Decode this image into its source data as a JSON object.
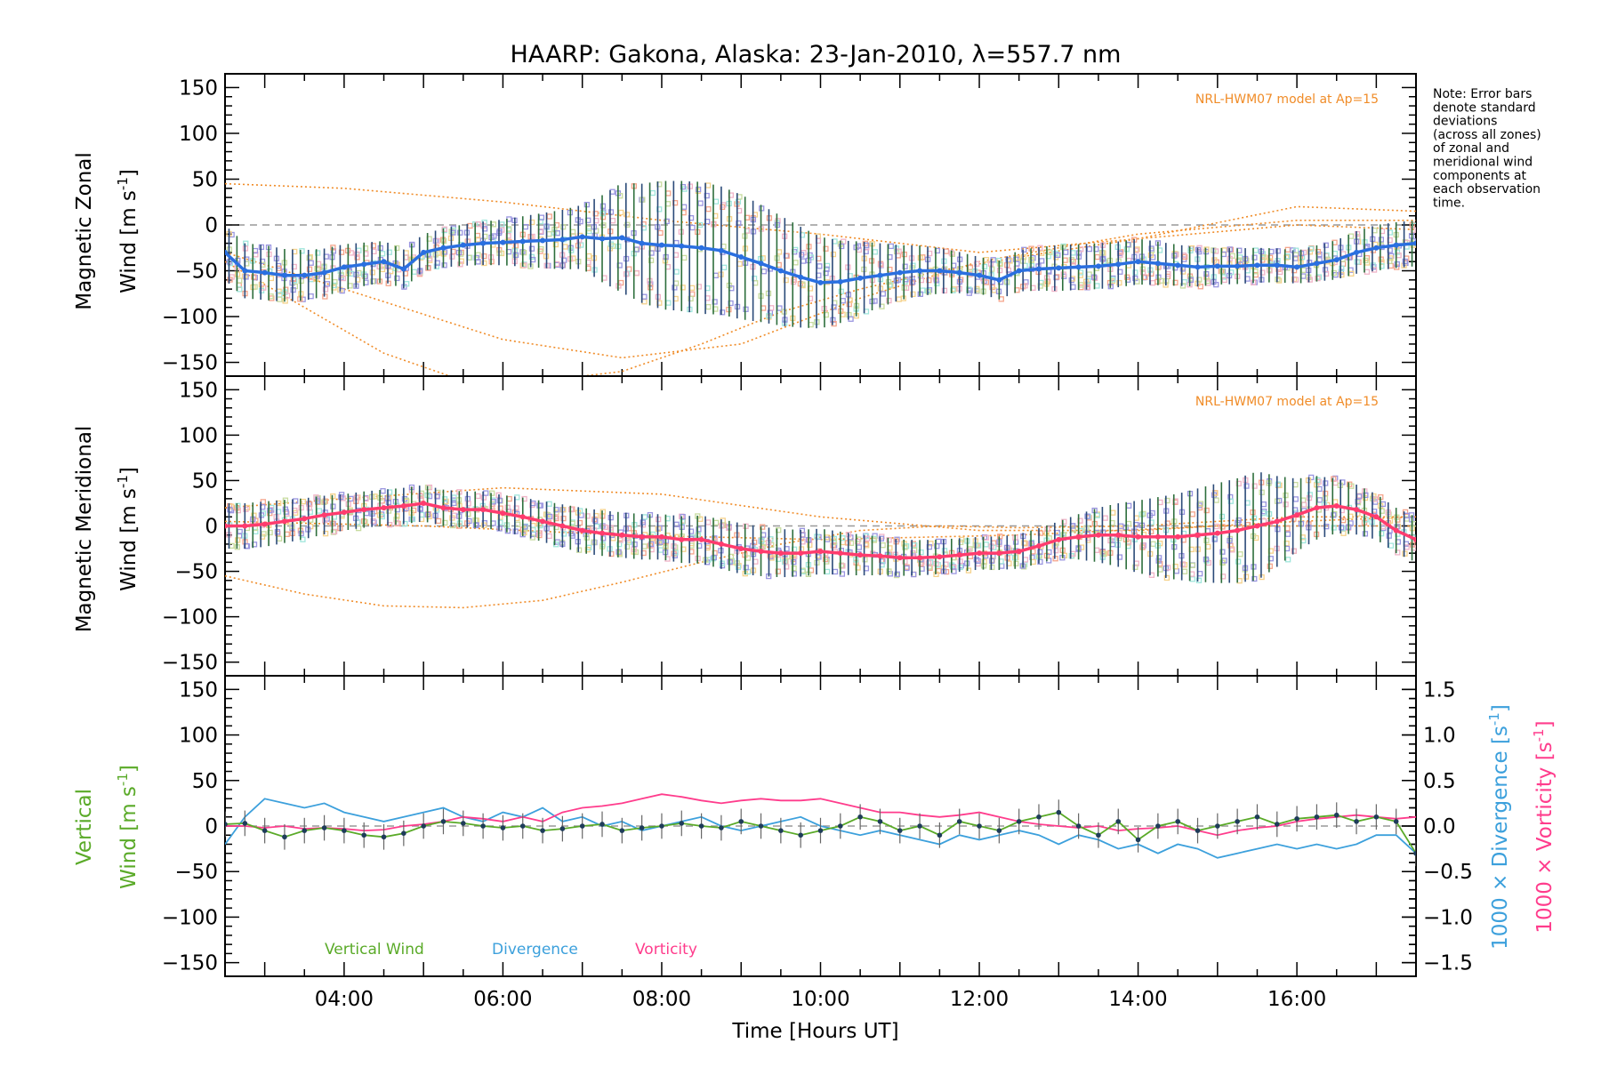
{
  "title": "HAARP: Gakona,  Alaska: 23-Jan-2010, λ=557.7 nm",
  "note_lines": [
    "Note: Error bars",
    "denote standard",
    "deviations",
    "(across all zones)",
    "of zonal and",
    "meridional wind",
    "components at",
    "each observation",
    "time."
  ],
  "colors": {
    "zonal_mean": "#2a6fe0",
    "meridional_mean": "#ff3c6e",
    "vertical": "#5aaa28",
    "divergence": "#3ca0dc",
    "vorticity": "#ff3c8c",
    "model": "#f08c28",
    "errorbar": "#1e3c5a",
    "zone_scatter": "#9a96e0",
    "zone_scatter_salmon": "#f5a58c"
  },
  "x_axis": {
    "label_pre": "Time ",
    "label_bracket": "[Hours UT]",
    "ticks": [
      "04:00",
      "06:00",
      "08:00",
      "10:00",
      "12:00",
      "14:00",
      "16:00"
    ],
    "range_hours": [
      2.5,
      17.5
    ]
  },
  "panel1": {
    "ylabel_line1": "Magnetic Zonal",
    "ylabel_line2": "Wind [m s",
    "ylabel_sup": "-1",
    "ylabel_close": "]",
    "model_label": "NRL-HWM07 model at Ap=15",
    "yticks": [
      "150",
      "100",
      "50",
      "0",
      "−50",
      "−100",
      "−150"
    ]
  },
  "panel2": {
    "ylabel_line1": "Magnetic Meridional",
    "ylabel_line2": "Wind [m s",
    "ylabel_sup": "-1",
    "ylabel_close": "]",
    "model_label": "NRL-HWM07 model at Ap=15",
    "yticks": [
      "150",
      "100",
      "50",
      "0",
      "−50",
      "−100",
      "−150"
    ]
  },
  "panel3": {
    "ylabel_line1": "Vertical",
    "ylabel_line2": "Wind [m s",
    "ylabel_sup": "-1",
    "ylabel_close": "]",
    "yticks": [
      "150",
      "100",
      "50",
      "0",
      "−50",
      "−100",
      "−150"
    ],
    "right_ticks": [
      "1.5",
      "1.0",
      "0.5",
      "0.0",
      "−0.5",
      "−1.0",
      "−1.5"
    ],
    "right_label_div": "1000 × Divergence [s",
    "right_label_vor": "1000 × Vorticity [s",
    "right_label_sup": "-1",
    "right_label_close": "]",
    "legend": [
      "Vertical Wind",
      "Divergence",
      "Vorticity"
    ]
  },
  "chart_data": [
    {
      "type": "line",
      "title": "HAARP: Gakona,  Alaska: 23-Jan-2010, λ=557.7 nm",
      "xlabel": "Time [Hours UT]",
      "ylabel": "Magnetic Zonal Wind [m s-1]",
      "ylim": [
        -165,
        165
      ],
      "xlim": [
        2.5,
        17.5
      ],
      "mean_zonal": {
        "x": [
          2.5,
          2.75,
          3.0,
          3.25,
          3.5,
          3.75,
          4.0,
          4.25,
          4.5,
          4.75,
          5.0,
          5.25,
          5.5,
          5.75,
          6.0,
          6.25,
          6.5,
          6.75,
          7.0,
          7.25,
          7.5,
          7.75,
          8.0,
          8.25,
          8.5,
          8.75,
          9.0,
          9.25,
          9.5,
          9.75,
          10.0,
          10.25,
          10.5,
          10.75,
          11.0,
          11.25,
          11.5,
          11.75,
          12.0,
          12.25,
          12.5,
          12.75,
          13.0,
          13.25,
          13.5,
          13.75,
          14.0,
          14.25,
          14.5,
          14.75,
          15.0,
          15.25,
          15.5,
          15.75,
          16.0,
          16.25,
          16.5,
          16.75,
          17.0,
          17.25,
          17.5
        ],
        "y": [
          -30,
          -50,
          -52,
          -55,
          -55,
          -52,
          -46,
          -43,
          -40,
          -48,
          -30,
          -25,
          -22,
          -20,
          -19,
          -18,
          -17,
          -16,
          -13,
          -15,
          -14,
          -20,
          -22,
          -23,
          -25,
          -28,
          -35,
          -42,
          -50,
          -57,
          -63,
          -62,
          -58,
          -55,
          -52,
          -50,
          -50,
          -52,
          -55,
          -60,
          -50,
          -48,
          -47,
          -46,
          -45,
          -43,
          -40,
          -42,
          -44,
          -46,
          -45,
          -45,
          -44,
          -44,
          -46,
          -42,
          -38,
          -30,
          -25,
          -22,
          -20
        ]
      },
      "errorbar_std": {
        "x": [
          3.0,
          4.0,
          5.0,
          6.0,
          7.0,
          7.5,
          8.0,
          8.5,
          9.0,
          9.5,
          10.0,
          11.0,
          12.0,
          13.0,
          14.0,
          15.0,
          16.0,
          17.0
        ],
        "y": [
          30,
          25,
          20,
          25,
          35,
          60,
          70,
          72,
          68,
          60,
          50,
          30,
          20,
          25,
          25,
          20,
          18,
          25
        ]
      },
      "model_curves": [
        {
          "x": [
            2.5,
            4.0,
            6.0,
            8.0,
            10.0,
            12.0,
            14.0,
            16.0,
            17.5
          ],
          "y": [
            45,
            40,
            25,
            5,
            -10,
            -30,
            -15,
            20,
            15
          ]
        },
        {
          "x": [
            2.5,
            4.0,
            6.0,
            7.5,
            9.0,
            10.5,
            12.0,
            14.0,
            16.0,
            17.5
          ],
          "y": [
            -30,
            -70,
            -125,
            -145,
            -130,
            -80,
            -40,
            -10,
            5,
            5
          ]
        },
        {
          "x": [
            2.5,
            3.5,
            4.5,
            5.5,
            6.5,
            7.5,
            8.5,
            9.5,
            10.5,
            11.5,
            12.5,
            14.0,
            16.0,
            17.5
          ],
          "y": [
            -40,
            -90,
            -140,
            -170,
            -170,
            -160,
            -130,
            -95,
            -70,
            -50,
            -35,
            -15,
            0,
            -5
          ]
        }
      ],
      "model_label": "NRL-HWM07 model at Ap=15"
    },
    {
      "type": "line",
      "xlabel": "Time [Hours UT]",
      "ylabel": "Magnetic Meridional Wind [m s-1]",
      "ylim": [
        -165,
        165
      ],
      "xlim": [
        2.5,
        17.5
      ],
      "mean_meridional": {
        "x": [
          2.5,
          2.75,
          3.0,
          3.25,
          3.5,
          3.75,
          4.0,
          4.25,
          4.5,
          4.75,
          5.0,
          5.25,
          5.5,
          5.75,
          6.0,
          6.25,
          6.5,
          6.75,
          7.0,
          7.25,
          7.5,
          7.75,
          8.0,
          8.25,
          8.5,
          8.75,
          9.0,
          9.25,
          9.5,
          9.75,
          10.0,
          10.25,
          10.5,
          10.75,
          11.0,
          11.25,
          11.5,
          11.75,
          12.0,
          12.25,
          12.5,
          12.75,
          13.0,
          13.25,
          13.5,
          13.75,
          14.0,
          14.25,
          14.5,
          14.75,
          15.0,
          15.25,
          15.5,
          15.75,
          16.0,
          16.25,
          16.5,
          16.75,
          17.0,
          17.25,
          17.5
        ],
        "y": [
          0,
          0,
          2,
          5,
          8,
          12,
          15,
          18,
          20,
          22,
          25,
          20,
          18,
          18,
          14,
          10,
          5,
          0,
          -5,
          -8,
          -10,
          -12,
          -12,
          -15,
          -15,
          -20,
          -25,
          -28,
          -30,
          -30,
          -28,
          -30,
          -32,
          -33,
          -35,
          -35,
          -34,
          -32,
          -30,
          -30,
          -28,
          -22,
          -15,
          -12,
          -10,
          -10,
          -12,
          -12,
          -12,
          -10,
          -8,
          -5,
          0,
          5,
          12,
          20,
          22,
          18,
          10,
          -5,
          -15
        ]
      },
      "errorbar_std": {
        "x": [
          3.0,
          4.0,
          5.0,
          6.0,
          7.0,
          8.0,
          9.0,
          10.0,
          11.0,
          12.0,
          13.0,
          14.0,
          15.0,
          15.5,
          16.0,
          16.5,
          17.0
        ],
        "y": [
          25,
          20,
          20,
          20,
          25,
          25,
          28,
          25,
          20,
          18,
          20,
          40,
          55,
          60,
          40,
          30,
          25
        ]
      },
      "model_curves": [
        {
          "x": [
            2.5,
            3.5,
            4.5,
            5.5,
            6.5,
            7.5,
            8.5,
            9.5,
            10.5,
            11.5,
            12.5,
            14.0,
            16.0,
            17.5
          ],
          "y": [
            -55,
            -75,
            -88,
            -90,
            -82,
            -62,
            -40,
            -20,
            -5,
            0,
            -2,
            0,
            10,
            10
          ]
        },
        {
          "x": [
            2.5,
            4.0,
            6.0,
            8.0,
            10.0,
            12.0,
            14.0,
            16.0,
            17.5
          ],
          "y": [
            20,
            30,
            42,
            35,
            10,
            -5,
            -5,
            5,
            10
          ]
        },
        {
          "x": [
            2.5,
            5.0,
            7.5,
            10.0,
            12.5,
            15.0,
            17.5
          ],
          "y": [
            5,
            0,
            -10,
            -15,
            -10,
            0,
            0
          ]
        }
      ],
      "model_label": "NRL-HWM07 model at Ap=15"
    },
    {
      "type": "line",
      "xlabel": "Time [Hours UT]",
      "ylabel": "Vertical Wind [m s-1]",
      "ylim": [
        -165,
        165
      ],
      "y2lim": [
        -1.65,
        1.65
      ],
      "y2label": "1000 × Divergence [s-1]; 1000 × Vorticity [s-1]",
      "xlim": [
        2.5,
        17.5
      ],
      "series": [
        {
          "name": "Vertical Wind",
          "axis": "left",
          "x": [
            2.5,
            2.75,
            3.0,
            3.25,
            3.5,
            3.75,
            4.0,
            4.25,
            4.5,
            4.75,
            5.0,
            5.25,
            5.5,
            5.75,
            6.0,
            6.25,
            6.5,
            6.75,
            7.0,
            7.25,
            7.5,
            7.75,
            8.0,
            8.25,
            8.5,
            8.75,
            9.0,
            9.25,
            9.5,
            9.75,
            10.0,
            10.25,
            10.5,
            10.75,
            11.0,
            11.25,
            11.5,
            11.75,
            12.0,
            12.25,
            12.5,
            12.75,
            13.0,
            13.25,
            13.5,
            13.75,
            14.0,
            14.25,
            14.5,
            14.75,
            15.0,
            15.25,
            15.5,
            15.75,
            16.0,
            16.25,
            16.5,
            16.75,
            17.0,
            17.25,
            17.5
          ],
          "y": [
            2,
            3,
            -5,
            -12,
            -5,
            -2,
            -5,
            -10,
            -12,
            -8,
            0,
            5,
            3,
            0,
            -2,
            0,
            -5,
            -3,
            0,
            2,
            -5,
            -2,
            0,
            3,
            0,
            -2,
            5,
            0,
            -5,
            -10,
            -5,
            0,
            10,
            5,
            -5,
            0,
            -10,
            5,
            0,
            -5,
            5,
            10,
            15,
            0,
            -10,
            5,
            -15,
            0,
            5,
            -5,
            0,
            5,
            10,
            2,
            8,
            10,
            12,
            5,
            10,
            5,
            -30
          ]
        },
        {
          "name": "Divergence",
          "axis": "right",
          "x": [
            2.5,
            2.75,
            3.0,
            3.25,
            3.5,
            3.75,
            4.0,
            4.25,
            4.5,
            4.75,
            5.0,
            5.25,
            5.5,
            5.75,
            6.0,
            6.25,
            6.5,
            6.75,
            7.0,
            7.25,
            7.5,
            7.75,
            8.0,
            8.25,
            8.5,
            8.75,
            9.0,
            9.25,
            9.5,
            9.75,
            10.0,
            10.25,
            10.5,
            10.75,
            11.0,
            11.25,
            11.5,
            11.75,
            12.0,
            12.25,
            12.5,
            12.75,
            13.0,
            13.25,
            13.5,
            13.75,
            14.0,
            14.25,
            14.5,
            14.75,
            15.0,
            15.25,
            15.5,
            15.75,
            16.0,
            16.25,
            16.5,
            16.75,
            17.0,
            17.25,
            17.5
          ],
          "y": [
            -0.2,
            0.1,
            0.3,
            0.25,
            0.2,
            0.25,
            0.15,
            0.1,
            0.05,
            0.1,
            0.15,
            0.2,
            0.1,
            0.05,
            0.15,
            0.1,
            0.2,
            0.05,
            0.1,
            0.0,
            0.05,
            -0.05,
            0.0,
            0.05,
            0.1,
            0.0,
            -0.05,
            0.0,
            0.05,
            0.1,
            0.0,
            -0.05,
            -0.1,
            -0.05,
            -0.1,
            -0.15,
            -0.2,
            -0.1,
            -0.15,
            -0.1,
            -0.05,
            -0.1,
            -0.2,
            -0.1,
            -0.15,
            -0.25,
            -0.2,
            -0.3,
            -0.2,
            -0.25,
            -0.35,
            -0.3,
            -0.25,
            -0.2,
            -0.25,
            -0.2,
            -0.25,
            -0.2,
            -0.1,
            -0.1,
            -0.3
          ]
        },
        {
          "name": "Vorticity",
          "axis": "right",
          "x": [
            2.5,
            2.75,
            3.0,
            3.25,
            3.5,
            3.75,
            4.0,
            4.25,
            4.5,
            4.75,
            5.0,
            5.25,
            5.5,
            5.75,
            6.0,
            6.25,
            6.5,
            6.75,
            7.0,
            7.25,
            7.5,
            7.75,
            8.0,
            8.25,
            8.5,
            8.75,
            9.0,
            9.25,
            9.5,
            9.75,
            10.0,
            10.25,
            10.5,
            10.75,
            11.0,
            11.25,
            11.5,
            11.75,
            12.0,
            12.25,
            12.5,
            12.75,
            13.0,
            13.25,
            13.5,
            13.75,
            14.0,
            14.25,
            14.5,
            14.75,
            15.0,
            15.25,
            15.5,
            15.75,
            16.0,
            16.25,
            16.5,
            16.75,
            17.0,
            17.25,
            17.5
          ],
          "y": [
            0.0,
            0.0,
            -0.02,
            0.0,
            -0.03,
            -0.02,
            -0.03,
            -0.05,
            -0.04,
            0.0,
            0.02,
            0.05,
            0.1,
            0.08,
            0.05,
            0.1,
            0.05,
            0.15,
            0.2,
            0.22,
            0.25,
            0.3,
            0.35,
            0.32,
            0.28,
            0.25,
            0.28,
            0.3,
            0.28,
            0.28,
            0.3,
            0.25,
            0.2,
            0.15,
            0.15,
            0.12,
            0.1,
            0.12,
            0.15,
            0.1,
            0.05,
            0.02,
            0.0,
            -0.02,
            0.0,
            -0.05,
            -0.03,
            -0.02,
            0.0,
            -0.05,
            -0.1,
            -0.05,
            -0.02,
            0.0,
            0.05,
            0.08,
            0.1,
            0.12,
            0.1,
            0.08,
            0.1
          ]
        }
      ],
      "legend": [
        "Vertical Wind",
        "Divergence",
        "Vorticity"
      ]
    }
  ]
}
